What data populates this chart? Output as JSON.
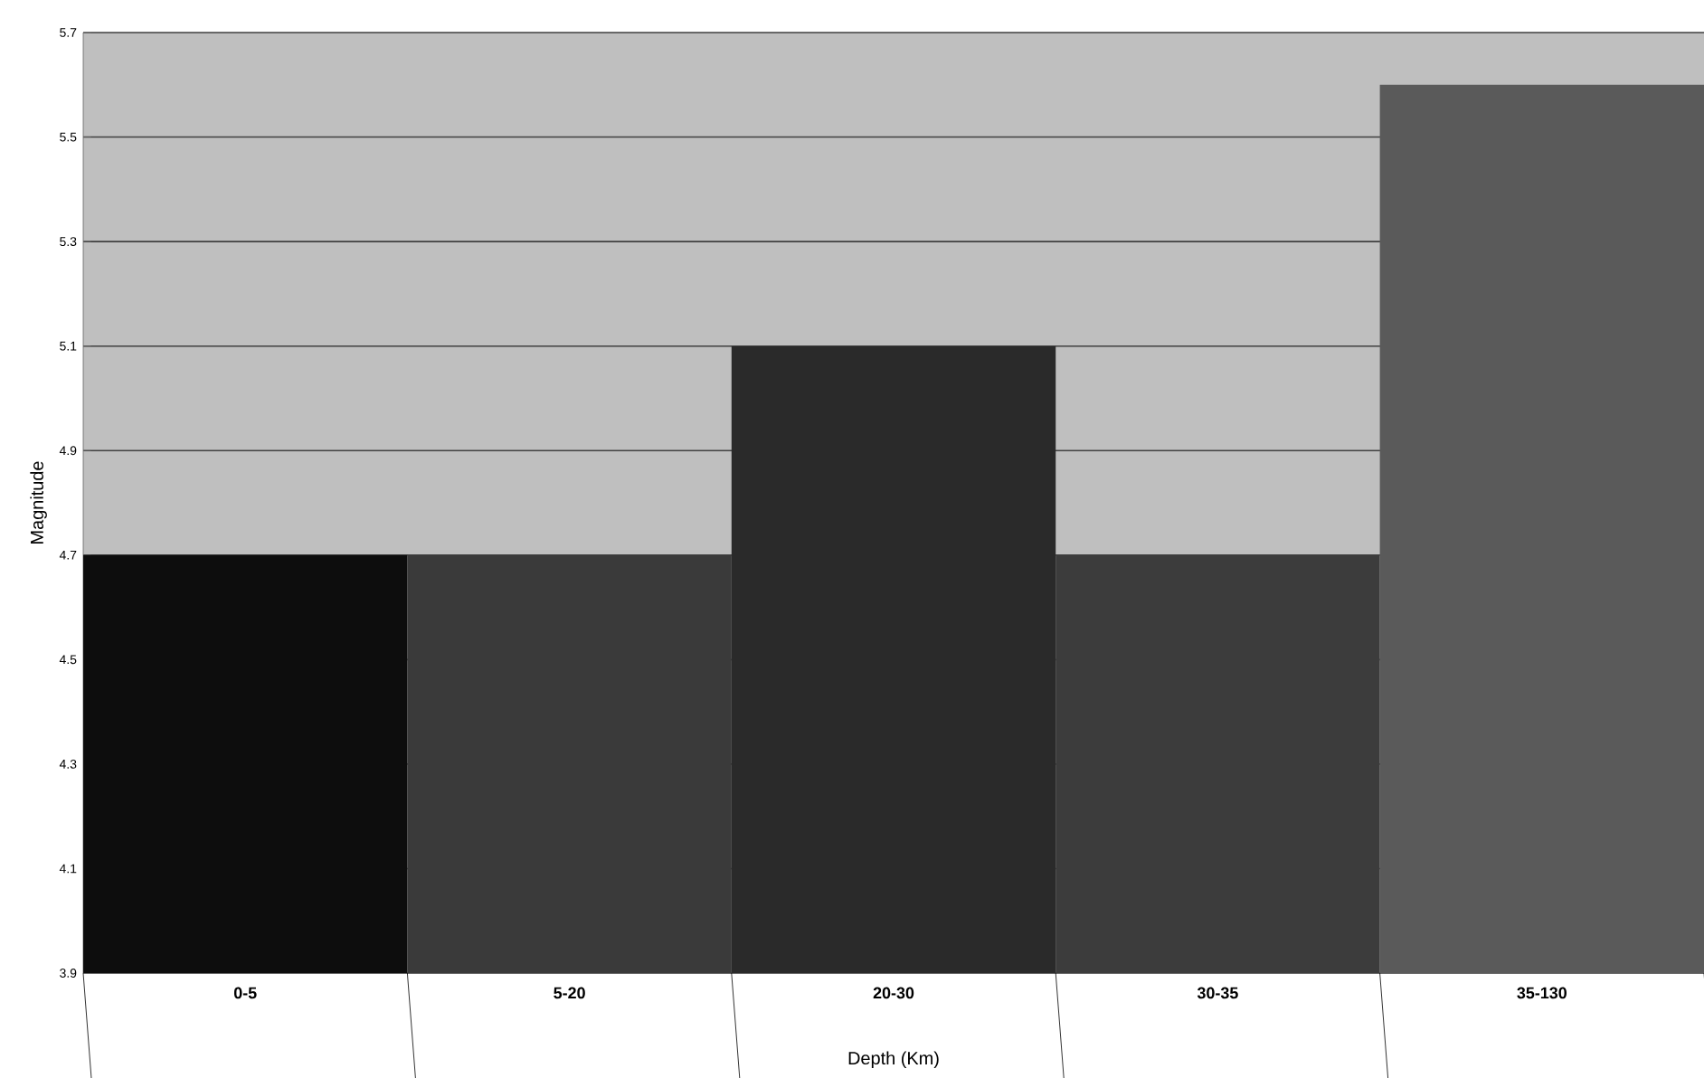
{
  "chart_data": {
    "type": "bar",
    "xlabel": "Depth (Km)",
    "ylabel": "Magnitude",
    "categories": [
      "0-5",
      "5-20",
      "20-30",
      "30-35",
      "35-130"
    ],
    "values": [
      4.7,
      4.7,
      5.1,
      4.7,
      5.6
    ],
    "colors": [
      "#0d0d0d",
      "#3a3a3a",
      "#2a2a2a",
      "#3c3c3c",
      "#5a5a5a"
    ],
    "ylim": [
      3.9,
      5.7
    ],
    "yticks": [
      3.9,
      4.1,
      4.3,
      4.5,
      4.7,
      4.9,
      5.1,
      5.3,
      5.5,
      5.7
    ],
    "grid": "y"
  }
}
